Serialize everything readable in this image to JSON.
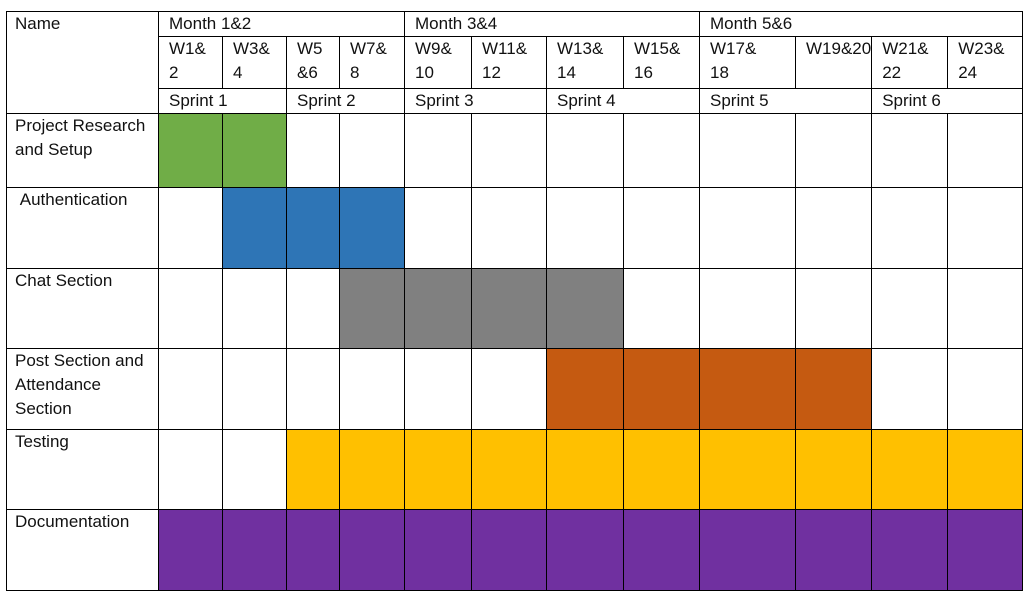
{
  "name_header": "Name",
  "months": [
    {
      "label": "Month 1&2",
      "span": 4
    },
    {
      "label": "Month 3&4",
      "span": 4
    },
    {
      "label": "Month 5&6",
      "span": 4
    }
  ],
  "weeks": [
    "W1&\n2",
    "W3&\n4",
    "W5\n&6",
    "W7&\n8",
    "W9&\n10",
    "W11&\n12",
    "W13&\n14",
    "W15&\n16",
    "W17&\n18",
    "W19&20",
    "W21&\n22",
    "W23&\n24"
  ],
  "sprints": [
    {
      "label": "Sprint 1",
      "span": 2
    },
    {
      "label": "Sprint 2",
      "span": 2
    },
    {
      "label": "Sprint 3",
      "span": 2
    },
    {
      "label": "Sprint 4",
      "span": 2
    },
    {
      "label": "Sprint 5",
      "span": 2
    },
    {
      "label": "Sprint 6",
      "span": 2
    }
  ],
  "tasks": [
    {
      "name": "Project Research and Setup",
      "start": 0,
      "end": 1,
      "color": "#70ad47"
    },
    {
      "name": " Authentication",
      "start": 1,
      "end": 3,
      "color": "#2e75b6"
    },
    {
      "name": "Chat Section",
      "start": 3,
      "end": 6,
      "color": "#808080"
    },
    {
      "name": "Post Section and Attendance Section",
      "start": 6,
      "end": 9,
      "color": "#c55a11"
    },
    {
      "name": "Testing",
      "start": 2,
      "end": 11,
      "color": "#ffc000"
    },
    {
      "name": "Documentation",
      "start": 0,
      "end": 11,
      "color": "#7030a0"
    }
  ]
}
